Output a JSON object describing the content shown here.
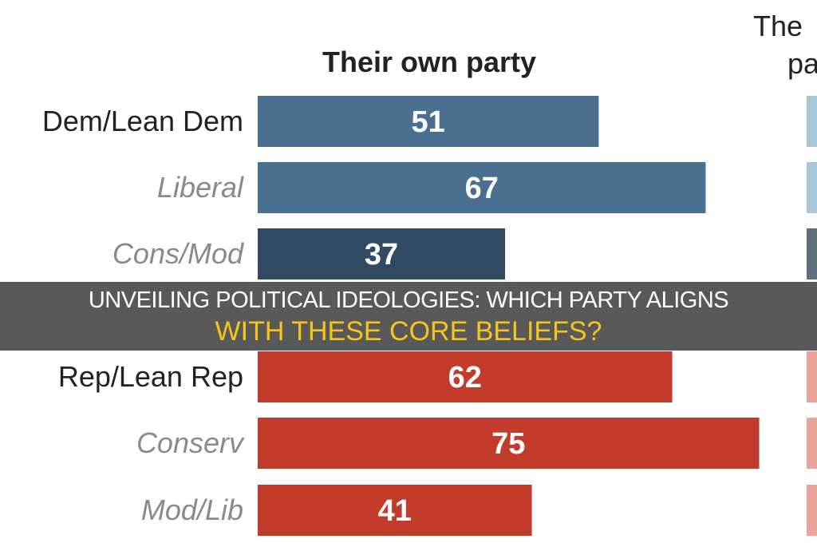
{
  "chart_data": {
    "type": "bar",
    "orientation": "horizontal",
    "title": "Their own party",
    "second_panel_title_visible": [
      "The",
      "pa"
    ],
    "categories": [
      "Dem/Lean Dem",
      "Liberal",
      "Cons/Mod",
      "Rep/Lean Rep",
      "Conserv",
      "Mod/Lib"
    ],
    "category_italic": [
      false,
      true,
      true,
      false,
      true,
      true
    ],
    "values": [
      51,
      67,
      37,
      62,
      75,
      41
    ],
    "groups": [
      "dem",
      "dem",
      "dem-dark",
      "rep",
      "rep",
      "rep"
    ],
    "xlim": [
      0,
      100
    ],
    "grid": false,
    "legend": "none",
    "colors": {
      "dem": "#4b6f8f",
      "dem-dark": "#2f4a62",
      "rep": "#c23b2b",
      "dem-light": "#a9c5d8",
      "rep-light": "#eba39c",
      "label": "#222222",
      "label_italic": "#8a8a8a"
    }
  },
  "banner": {
    "line1": "UNVEILING POLITICAL IDEOLOGIES: WHICH PARTY ALIGNS",
    "line2": "WITH THESE CORE BELIEFS?"
  }
}
